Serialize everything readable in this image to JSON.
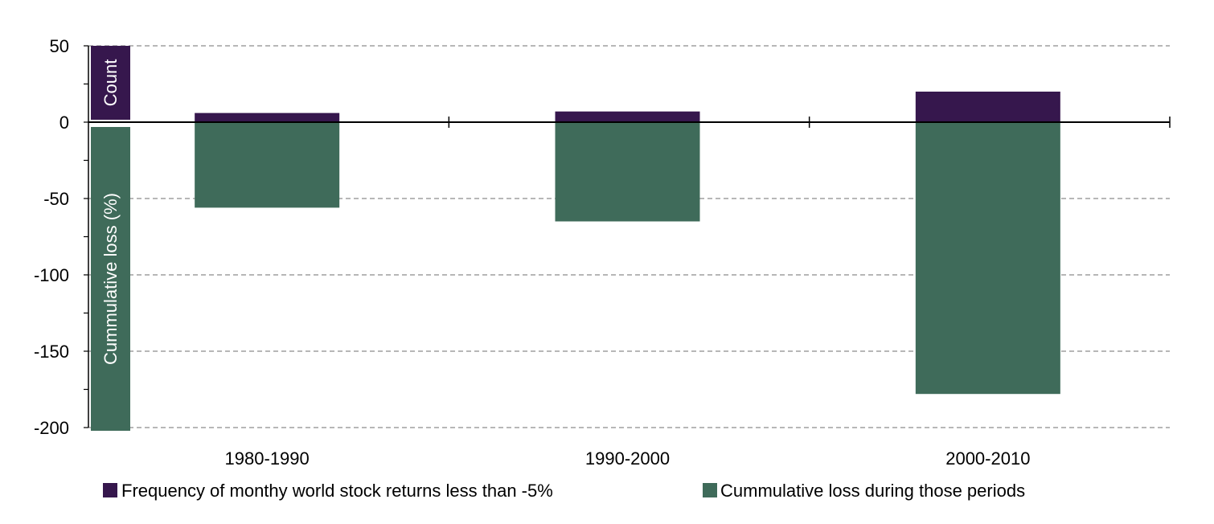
{
  "chart_data": {
    "type": "bar",
    "categories": [
      "1980-1990",
      "1990-2000",
      "2000-2010"
    ],
    "series": [
      {
        "name": "Frequency of monthy world stock returns less than -5%",
        "values": [
          6,
          7,
          20
        ],
        "color": "#36174d"
      },
      {
        "name": "Cummulative loss during those periods",
        "values": [
          -56,
          -65,
          -178
        ],
        "color": "#3f6b5a"
      }
    ],
    "ylim": [
      -200,
      50
    ],
    "yticks": [
      "50",
      "0",
      "-50",
      "-100",
      "-150",
      "-200"
    ],
    "ytick_values": [
      50,
      0,
      -50,
      -100,
      -150,
      -200
    ],
    "axis_titles": {
      "upper": "Count",
      "lower": "Cummulative loss (%)"
    },
    "grid": true,
    "legend_position": "bottom"
  }
}
